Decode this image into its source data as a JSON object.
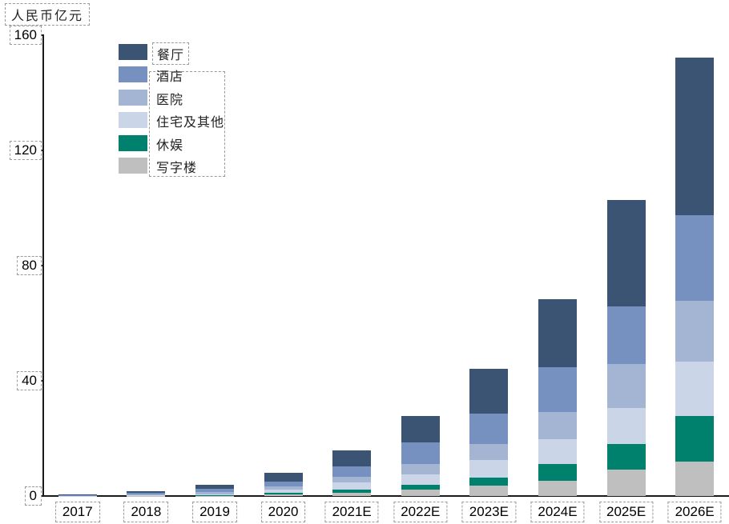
{
  "title": "人民币亿元",
  "chart_data": {
    "type": "bar",
    "stacked": true,
    "title": "人民币亿元",
    "xlabel": "",
    "ylabel": "人民币亿元",
    "ylim": [
      0,
      160
    ],
    "yticks": [
      0,
      40,
      80,
      120,
      160
    ],
    "grid": false,
    "legend_position": "upper-left-inside",
    "categories": [
      "2017",
      "2018",
      "2019",
      "2020",
      "2021E",
      "2022E",
      "2023E",
      "2024E",
      "2025E",
      "2026E"
    ],
    "series": [
      {
        "key": "restaurant",
        "name": "餐厅",
        "color": "#3c5474",
        "values": [
          0.3,
          0.6,
          1.4,
          3.0,
          5.5,
          9.3,
          15.5,
          23.6,
          37.2,
          54.7
        ]
      },
      {
        "key": "hotel",
        "name": "酒店",
        "color": "#7691bf",
        "values": [
          0.15,
          0.5,
          1.1,
          1.7,
          3.6,
          7.4,
          10.6,
          15.5,
          19.9,
          29.7
        ]
      },
      {
        "key": "hospital",
        "name": "医院",
        "color": "#a4b5d4",
        "values": [
          0.1,
          0.3,
          0.8,
          1.1,
          2.2,
          3.7,
          5.6,
          9.5,
          15.2,
          21.1
        ]
      },
      {
        "key": "residential-and-other",
        "name": "住宅及其他",
        "color": "#cbd5e8",
        "values": [
          0.05,
          0.15,
          0.35,
          1.2,
          2.3,
          3.5,
          6.0,
          8.6,
          12.5,
          18.9
        ]
      },
      {
        "key": "leisure",
        "name": "休娱",
        "color": "#00816e",
        "values": [
          0,
          0.1,
          0.2,
          0.45,
          1.2,
          1.8,
          2.8,
          5.8,
          8.8,
          15.9
        ]
      },
      {
        "key": "office",
        "name": "写字楼",
        "color": "#bfbfbf",
        "values": [
          0,
          0.05,
          0.1,
          0.65,
          1.1,
          2.1,
          3.7,
          5.3,
          9.3,
          11.9
        ]
      }
    ],
    "stack_order_bottom_to_top": [
      "写字楼",
      "休娱",
      "住宅及其他",
      "医院",
      "酒店",
      "餐厅"
    ],
    "axis_color": "#1a1a1a",
    "annotation_box_style": "dashed-gray"
  }
}
